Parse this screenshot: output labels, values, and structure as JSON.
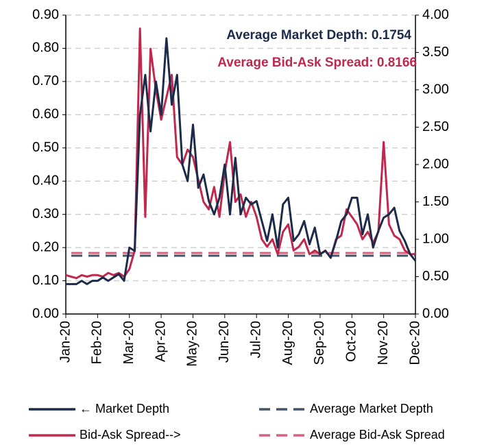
{
  "chart_data": {
    "type": "line",
    "categories": [
      "Jan-20",
      null,
      null,
      null,
      null,
      null,
      "Feb-20",
      null,
      null,
      null,
      null,
      null,
      "Mar-20",
      null,
      null,
      null,
      null,
      null,
      "Apr-20",
      null,
      null,
      null,
      null,
      null,
      "May-20",
      null,
      null,
      null,
      null,
      null,
      "Jun-20",
      null,
      null,
      null,
      null,
      null,
      "Jul-20",
      null,
      null,
      null,
      null,
      null,
      "Aug-20",
      null,
      null,
      null,
      null,
      null,
      "Sep-20",
      null,
      null,
      null,
      null,
      null,
      "Oct-20",
      null,
      null,
      null,
      null,
      null,
      "Nov-20",
      null,
      null,
      null,
      null,
      null,
      "Dec-20"
    ],
    "series": [
      {
        "name": "← Market Depth",
        "color": "#1c2b4a",
        "axis": "y",
        "values": [
          0.09,
          0.09,
          0.09,
          0.1,
          0.09,
          0.1,
          0.1,
          0.11,
          0.1,
          0.11,
          0.12,
          0.1,
          0.2,
          0.19,
          0.6,
          0.72,
          0.55,
          0.7,
          0.6,
          0.83,
          0.63,
          0.72,
          0.45,
          0.4,
          0.57,
          0.38,
          0.42,
          0.34,
          0.3,
          0.35,
          0.45,
          0.3,
          0.47,
          0.3,
          0.35,
          0.33,
          0.34,
          0.28,
          0.22,
          0.3,
          0.2,
          0.33,
          0.35,
          0.22,
          0.24,
          0.28,
          0.21,
          0.26,
          0.18,
          0.19,
          0.17,
          0.22,
          0.28,
          0.3,
          0.35,
          0.35,
          0.24,
          0.3,
          0.2,
          0.25,
          0.29,
          0.3,
          0.32,
          0.25,
          0.22,
          0.18,
          0.16
        ]
      },
      {
        "name": "Bid-Ask Spread-->",
        "color": "#c0284e",
        "axis": "y2",
        "values": [
          0.52,
          0.5,
          0.48,
          0.52,
          0.5,
          0.52,
          0.52,
          0.5,
          0.55,
          0.52,
          0.55,
          0.5,
          0.6,
          0.85,
          3.82,
          1.3,
          3.55,
          3.0,
          2.6,
          2.9,
          3.2,
          2.1,
          2.0,
          2.2,
          2.1,
          1.8,
          1.5,
          1.4,
          1.7,
          1.3,
          1.9,
          2.3,
          1.5,
          1.6,
          1.3,
          1.5,
          1.3,
          1.0,
          0.9,
          1.0,
          0.8,
          1.1,
          1.2,
          0.85,
          0.9,
          1.0,
          0.8,
          0.85,
          0.8,
          0.85,
          0.75,
          1.0,
          1.05,
          1.4,
          1.3,
          1.2,
          1.0,
          1.1,
          0.95,
          1.1,
          2.3,
          1.2,
          1.05,
          1.0,
          0.85,
          0.8,
          0.8
        ]
      }
    ],
    "reference_lines": [
      {
        "name": "Average Market Depth",
        "value": 0.1754,
        "axis": "y",
        "color": "#44546a",
        "dashed": true
      },
      {
        "name": "Average Bid-Ask Spread",
        "value": 0.8166,
        "axis": "y2",
        "color": "#d9607e",
        "dashed": true
      }
    ],
    "annotations": [
      {
        "text": "Average Market Depth: 0.1754",
        "color": "#1c2b4a"
      },
      {
        "text": "Average Bid-Ask Spread: 0.8166",
        "color": "#c0284e"
      }
    ],
    "ylim": [
      0,
      0.9
    ],
    "yticks": [
      {
        "value": 0,
        "label": "0.00"
      },
      {
        "value": 0.1,
        "label": "0.10"
      },
      {
        "value": 0.2,
        "label": "0.20"
      },
      {
        "value": 0.3,
        "label": "0.30"
      },
      {
        "value": 0.4,
        "label": "0.40"
      },
      {
        "value": 0.5,
        "label": "0.50"
      },
      {
        "value": 0.6,
        "label": "0.60"
      },
      {
        "value": 0.7,
        "label": "0.70"
      },
      {
        "value": 0.8,
        "label": "0.80"
      },
      {
        "value": 0.9,
        "label": "0.90"
      }
    ],
    "y2lim": [
      0,
      4
    ],
    "y2ticks": [
      {
        "value": 0,
        "label": "0.00"
      },
      {
        "value": 0.5,
        "label": "0.50"
      },
      {
        "value": 1,
        "label": "1.00"
      },
      {
        "value": 1.5,
        "label": "1.50"
      },
      {
        "value": 2,
        "label": "2.00"
      },
      {
        "value": 2.5,
        "label": "2.50"
      },
      {
        "value": 3,
        "label": "3.00"
      },
      {
        "value": 3.5,
        "label": "3.50"
      },
      {
        "value": 4,
        "label": "4.00"
      }
    ],
    "grid": true,
    "legend": "bottom"
  }
}
